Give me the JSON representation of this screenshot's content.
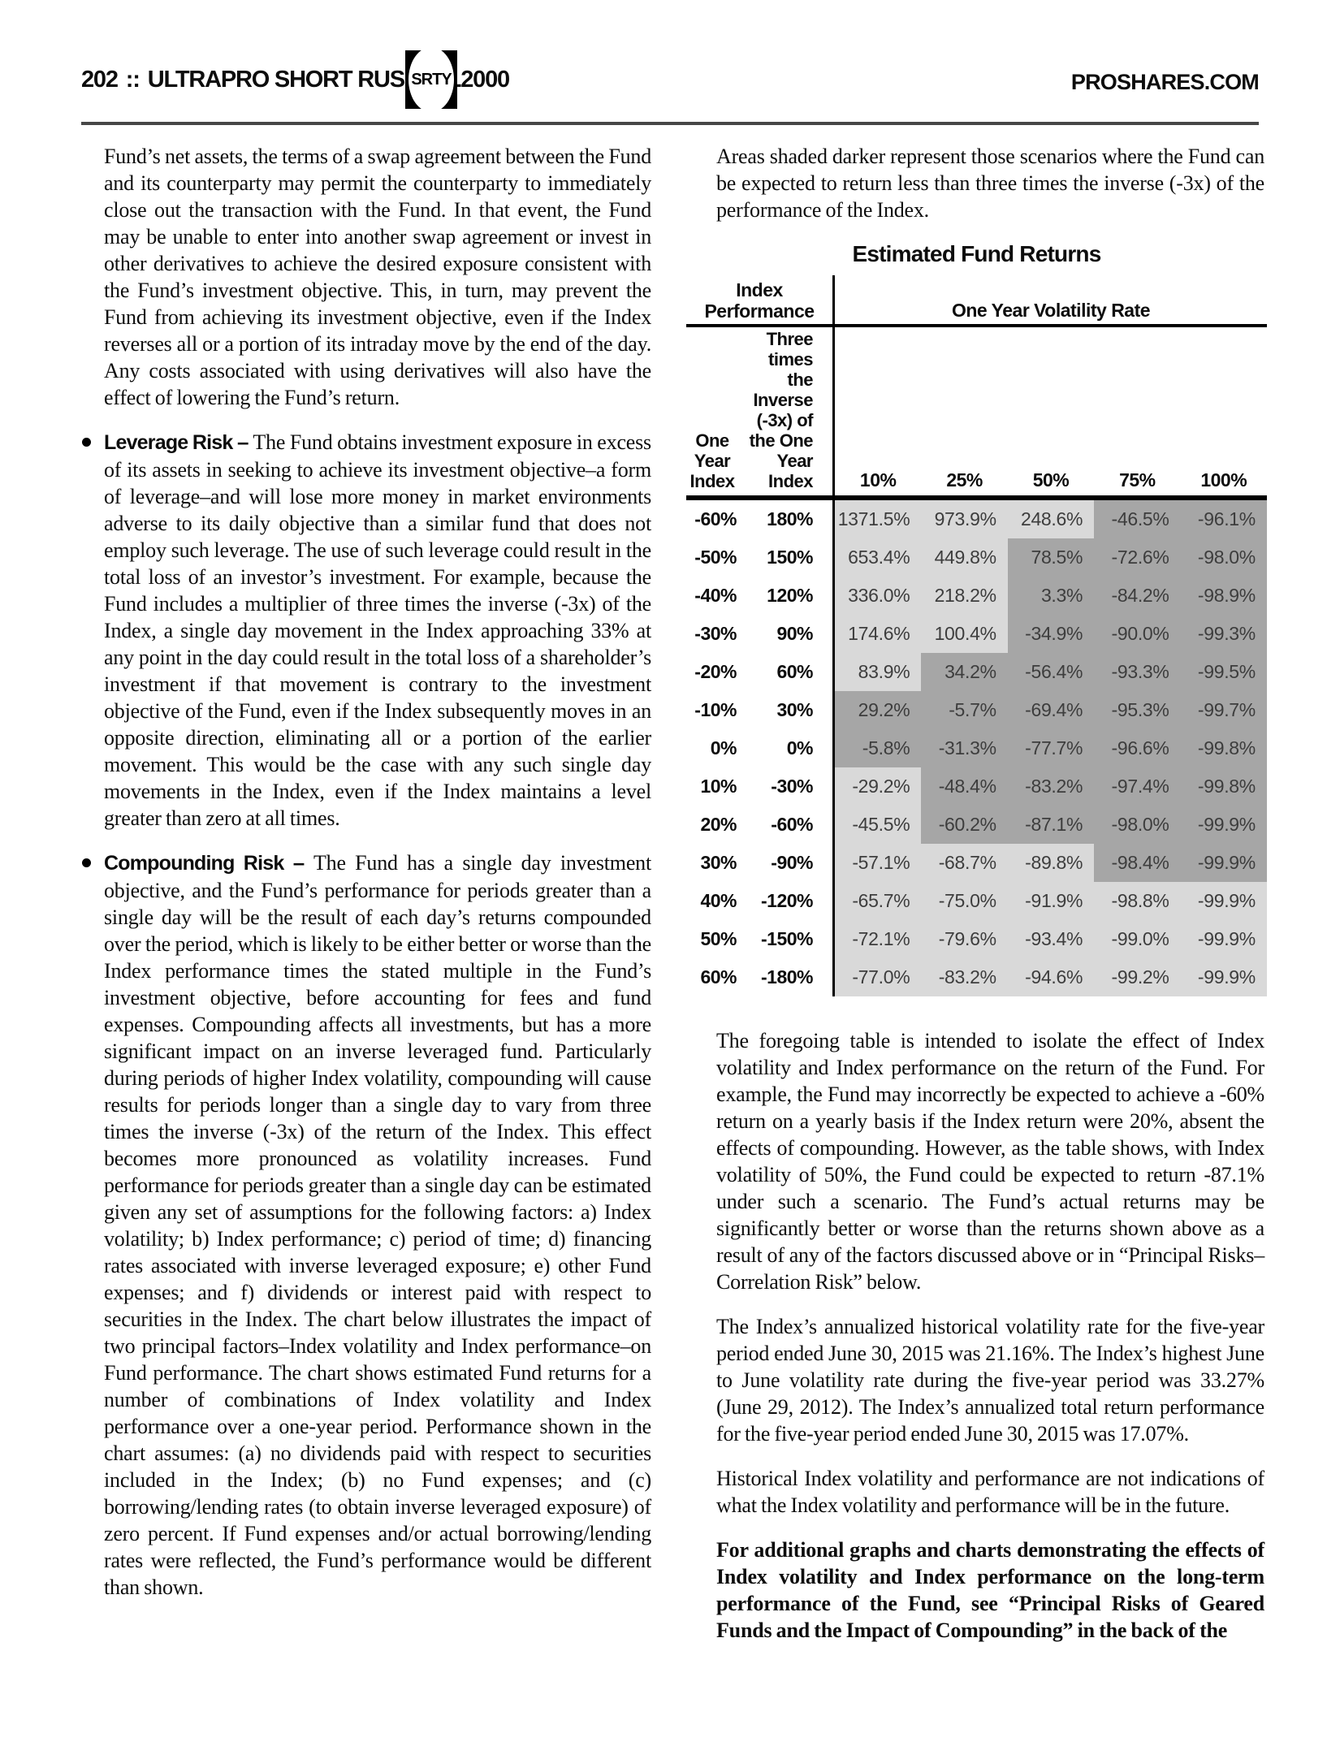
{
  "page": {
    "number": "202",
    "separator": "::",
    "fund_name": "ULTRAPRO SHORT RUSSELL2000",
    "ticker": "SRTY",
    "website": "PROSHARES.COM"
  },
  "left_column": {
    "para1": "Fund’s net assets, the terms of a swap agreement between the Fund and its counterparty may permit the counterparty to immediately close out the transaction with the Fund. In that event, the Fund may be unable to enter into another swap agreement or invest in other derivatives to achieve the desired exposure consistent with the Fund’s investment objective. This, in turn, may prevent the Fund from achieving its investment objective, even if the Index reverses all or a portion of its intraday move by the end of the day. Any costs associated with using derivatives will also have the effect of lowering the Fund’s return.",
    "bullets": [
      {
        "label": "Leverage Risk",
        "dash": "–",
        "text": "The Fund obtains investment exposure in excess of its assets in seeking to achieve its investment objective–a form of leverage–and will lose more money in market environments adverse to its daily objective than a similar fund that does not employ such leverage. The use of such leverage could result in the total loss of an investor’s investment. For example, because the Fund includes a multiplier of three times the inverse (-3x) of the Index, a single day movement in the Index approaching 33% at any point in the day could result in the total loss of a shareholder’s investment if that movement is contrary to the investment objective of the Fund, even if the Index subsequently moves in an opposite direction, eliminating all or a portion of the earlier movement. This would be the case with any such single day movements in the Index, even if the Index maintains a level greater than zero at all times."
      },
      {
        "label": "Compounding Risk",
        "dash": "–",
        "text": "The Fund has a single day investment objective, and the Fund’s performance for periods greater than a single day will be the result of each day’s returns compounded over the period, which is likely to be either better or worse than the Index performance times the stated multiple in the Fund’s investment objective, before accounting for fees and fund expenses. Compounding affects all investments, but has a more significant impact on an inverse leveraged fund. Particularly during periods of higher Index volatility, compounding will cause results for periods longer than a single day to vary from three times the inverse (-3x) of the return of the Index. This effect becomes more pronounced as volatility increases. Fund performance for periods greater than a single day can be estimated given any set of assumptions for the following factors: a) Index volatility; b) Index performance; c) period of time; d) financing rates associated with inverse leveraged exposure; e) other Fund expenses; and f) dividends or interest paid with respect to securities in the Index. The chart below illustrates the impact of two principal factors–Index volatility and Index performance–on Fund performance. The chart shows estimated Fund returns for a number of combinations of Index volatility and Index performance over a one-year period. Performance shown in the chart assumes: (a) no dividends paid with respect to securities included in the Index; (b) no Fund expenses; and (c) borrowing/lending rates (to obtain inverse leveraged exposure) of zero percent. If Fund expenses and/or actual borrowing/lending rates were reflected, the Fund’s performance would be different than shown."
      }
    ]
  },
  "right_column": {
    "para1": "Areas shaded darker represent those scenarios where the Fund can be expected to return less than three times the inverse (-3x) of the performance of the Index.",
    "table": {
      "title": "Estimated Fund Returns",
      "row_header_title": "Index Performance",
      "col_header_title": "One Year Volatility Rate",
      "col1_header_lines": [
        "One",
        "Year",
        "Index"
      ],
      "col2_header_lines": [
        "Three",
        "times",
        "the",
        "Inverse",
        "(-3x) of",
        "the One",
        "Year",
        "Index"
      ],
      "volatility_headers": [
        "10%",
        "25%",
        "50%",
        "75%",
        "100%"
      ],
      "colors": {
        "light": "#d9d9d9",
        "dark": "#a6a6a6"
      },
      "rows": [
        {
          "index": "-60%",
          "inverse": "180%",
          "values": [
            "1371.5%",
            "973.9%",
            "248.6%",
            "-46.5%",
            "-96.1%"
          ],
          "shades": [
            "light",
            "light",
            "light",
            "dark",
            "dark"
          ]
        },
        {
          "index": "-50%",
          "inverse": "150%",
          "values": [
            "653.4%",
            "449.8%",
            "78.5%",
            "-72.6%",
            "-98.0%"
          ],
          "shades": [
            "light",
            "light",
            "dark",
            "dark",
            "dark"
          ]
        },
        {
          "index": "-40%",
          "inverse": "120%",
          "values": [
            "336.0%",
            "218.2%",
            "3.3%",
            "-84.2%",
            "-98.9%"
          ],
          "shades": [
            "light",
            "light",
            "dark",
            "dark",
            "dark"
          ]
        },
        {
          "index": "-30%",
          "inverse": "90%",
          "values": [
            "174.6%",
            "100.4%",
            "-34.9%",
            "-90.0%",
            "-99.3%"
          ],
          "shades": [
            "light",
            "light",
            "dark",
            "dark",
            "dark"
          ]
        },
        {
          "index": "-20%",
          "inverse": "60%",
          "values": [
            "83.9%",
            "34.2%",
            "-56.4%",
            "-93.3%",
            "-99.5%"
          ],
          "shades": [
            "light",
            "dark",
            "dark",
            "dark",
            "dark"
          ]
        },
        {
          "index": "-10%",
          "inverse": "30%",
          "values": [
            "29.2%",
            "-5.7%",
            "-69.4%",
            "-95.3%",
            "-99.7%"
          ],
          "shades": [
            "dark",
            "dark",
            "dark",
            "dark",
            "dark"
          ]
        },
        {
          "index": "0%",
          "inverse": "0%",
          "values": [
            "-5.8%",
            "-31.3%",
            "-77.7%",
            "-96.6%",
            "-99.8%"
          ],
          "shades": [
            "dark",
            "dark",
            "dark",
            "dark",
            "dark"
          ]
        },
        {
          "index": "10%",
          "inverse": "-30%",
          "values": [
            "-29.2%",
            "-48.4%",
            "-83.2%",
            "-97.4%",
            "-99.8%"
          ],
          "shades": [
            "light",
            "dark",
            "dark",
            "dark",
            "dark"
          ]
        },
        {
          "index": "20%",
          "inverse": "-60%",
          "values": [
            "-45.5%",
            "-60.2%",
            "-87.1%",
            "-98.0%",
            "-99.9%"
          ],
          "shades": [
            "light",
            "dark",
            "dark",
            "dark",
            "dark"
          ]
        },
        {
          "index": "30%",
          "inverse": "-90%",
          "values": [
            "-57.1%",
            "-68.7%",
            "-89.8%",
            "-98.4%",
            "-99.9%"
          ],
          "shades": [
            "light",
            "light",
            "light",
            "dark",
            "dark"
          ]
        },
        {
          "index": "40%",
          "inverse": "-120%",
          "values": [
            "-65.7%",
            "-75.0%",
            "-91.9%",
            "-98.8%",
            "-99.9%"
          ],
          "shades": [
            "light",
            "light",
            "light",
            "light",
            "light"
          ]
        },
        {
          "index": "50%",
          "inverse": "-150%",
          "values": [
            "-72.1%",
            "-79.6%",
            "-93.4%",
            "-99.0%",
            "-99.9%"
          ],
          "shades": [
            "light",
            "light",
            "light",
            "light",
            "light"
          ]
        },
        {
          "index": "60%",
          "inverse": "-180%",
          "values": [
            "-77.0%",
            "-83.2%",
            "-94.6%",
            "-99.2%",
            "-99.9%"
          ],
          "shades": [
            "light",
            "light",
            "light",
            "light",
            "light"
          ]
        }
      ]
    },
    "para2": "The foregoing table is intended to isolate the effect of Index volatility and Index performance on the return of the Fund. For example, the Fund may incorrectly be expected to achieve a -60% return on a yearly basis if the Index return were 20%, absent the effects of compounding. However, as the table shows, with Index volatility of 50%, the Fund could be expected to return -87.1% under such a scenario. The Fund’s actual returns may be significantly better or worse than the returns shown above as a result of any of the factors discussed above or in “Principal Risks–Correlation Risk” below.",
    "para3": "The Index’s annualized historical volatility rate for the five-year period ended June 30, 2015 was 21.16%. The Index’s highest June to June volatility rate during the five-year period was 33.27% (June 29, 2012). The Index’s annualized total return performance for the five-year period ended June 30, 2015 was 17.07%.",
    "para4": "Historical Index volatility and performance are not indications of what the Index volatility and performance will be in the future.",
    "para5": "For additional graphs and charts demonstrating the effects of Index volatility and Index performance on the long-term performance of the Fund, see “Principal Risks of Geared Funds and the Impact of Compounding” in the back of the"
  }
}
